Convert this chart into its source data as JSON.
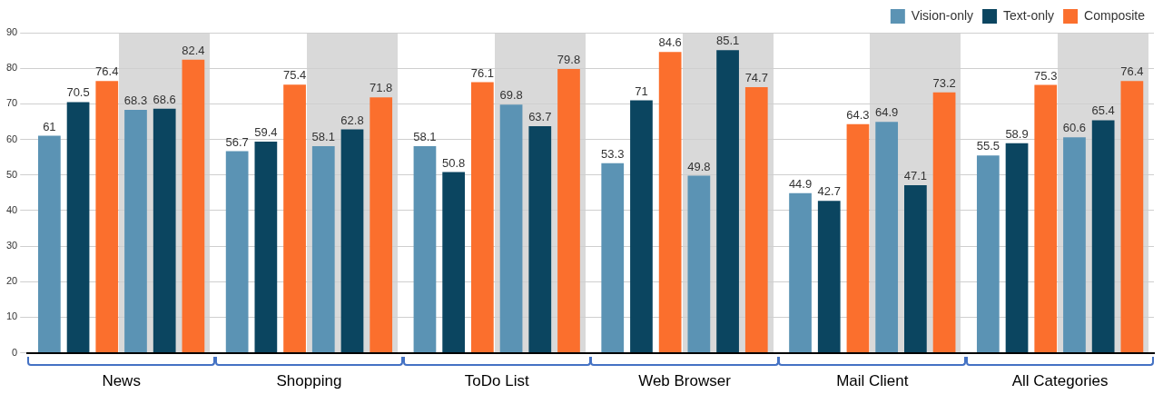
{
  "chart_data": {
    "type": "bar",
    "categories": [
      "News",
      "Shopping",
      "ToDo List",
      "Web Browser",
      "Mail Client",
      "All Categories"
    ],
    "series": [
      {
        "name": "Vision-only",
        "color": "#5b93b4",
        "values": [
          61,
          56.7,
          58.1,
          53.3,
          44.9,
          55.5
        ]
      },
      {
        "name": "Text-only",
        "color": "#0b4560",
        "values": [
          70.5,
          59.4,
          50.8,
          71,
          42.7,
          58.9
        ]
      },
      {
        "name": "Composite",
        "color": "#fb6f2d",
        "values": [
          76.4,
          75.4,
          76.1,
          84.6,
          64.3,
          75.3
        ]
      },
      {
        "color": "#5b93b4",
        "values": [
          68.3,
          58.1,
          69.8,
          49.8,
          64.9,
          60.6
        ]
      },
      {
        "color": "#0b4560",
        "values": [
          68.6,
          62.8,
          63.7,
          85.1,
          47.1,
          65.4
        ]
      },
      {
        "color": "#fb6f2d",
        "values": [
          82.4,
          71.8,
          79.8,
          74.7,
          73.2,
          76.4
        ]
      }
    ],
    "ylim": [
      0,
      90
    ],
    "yticks": [
      0,
      10,
      20,
      30,
      40,
      50,
      60,
      70,
      80,
      90
    ],
    "grid": "y",
    "legend": "top right",
    "data_labels": true
  }
}
